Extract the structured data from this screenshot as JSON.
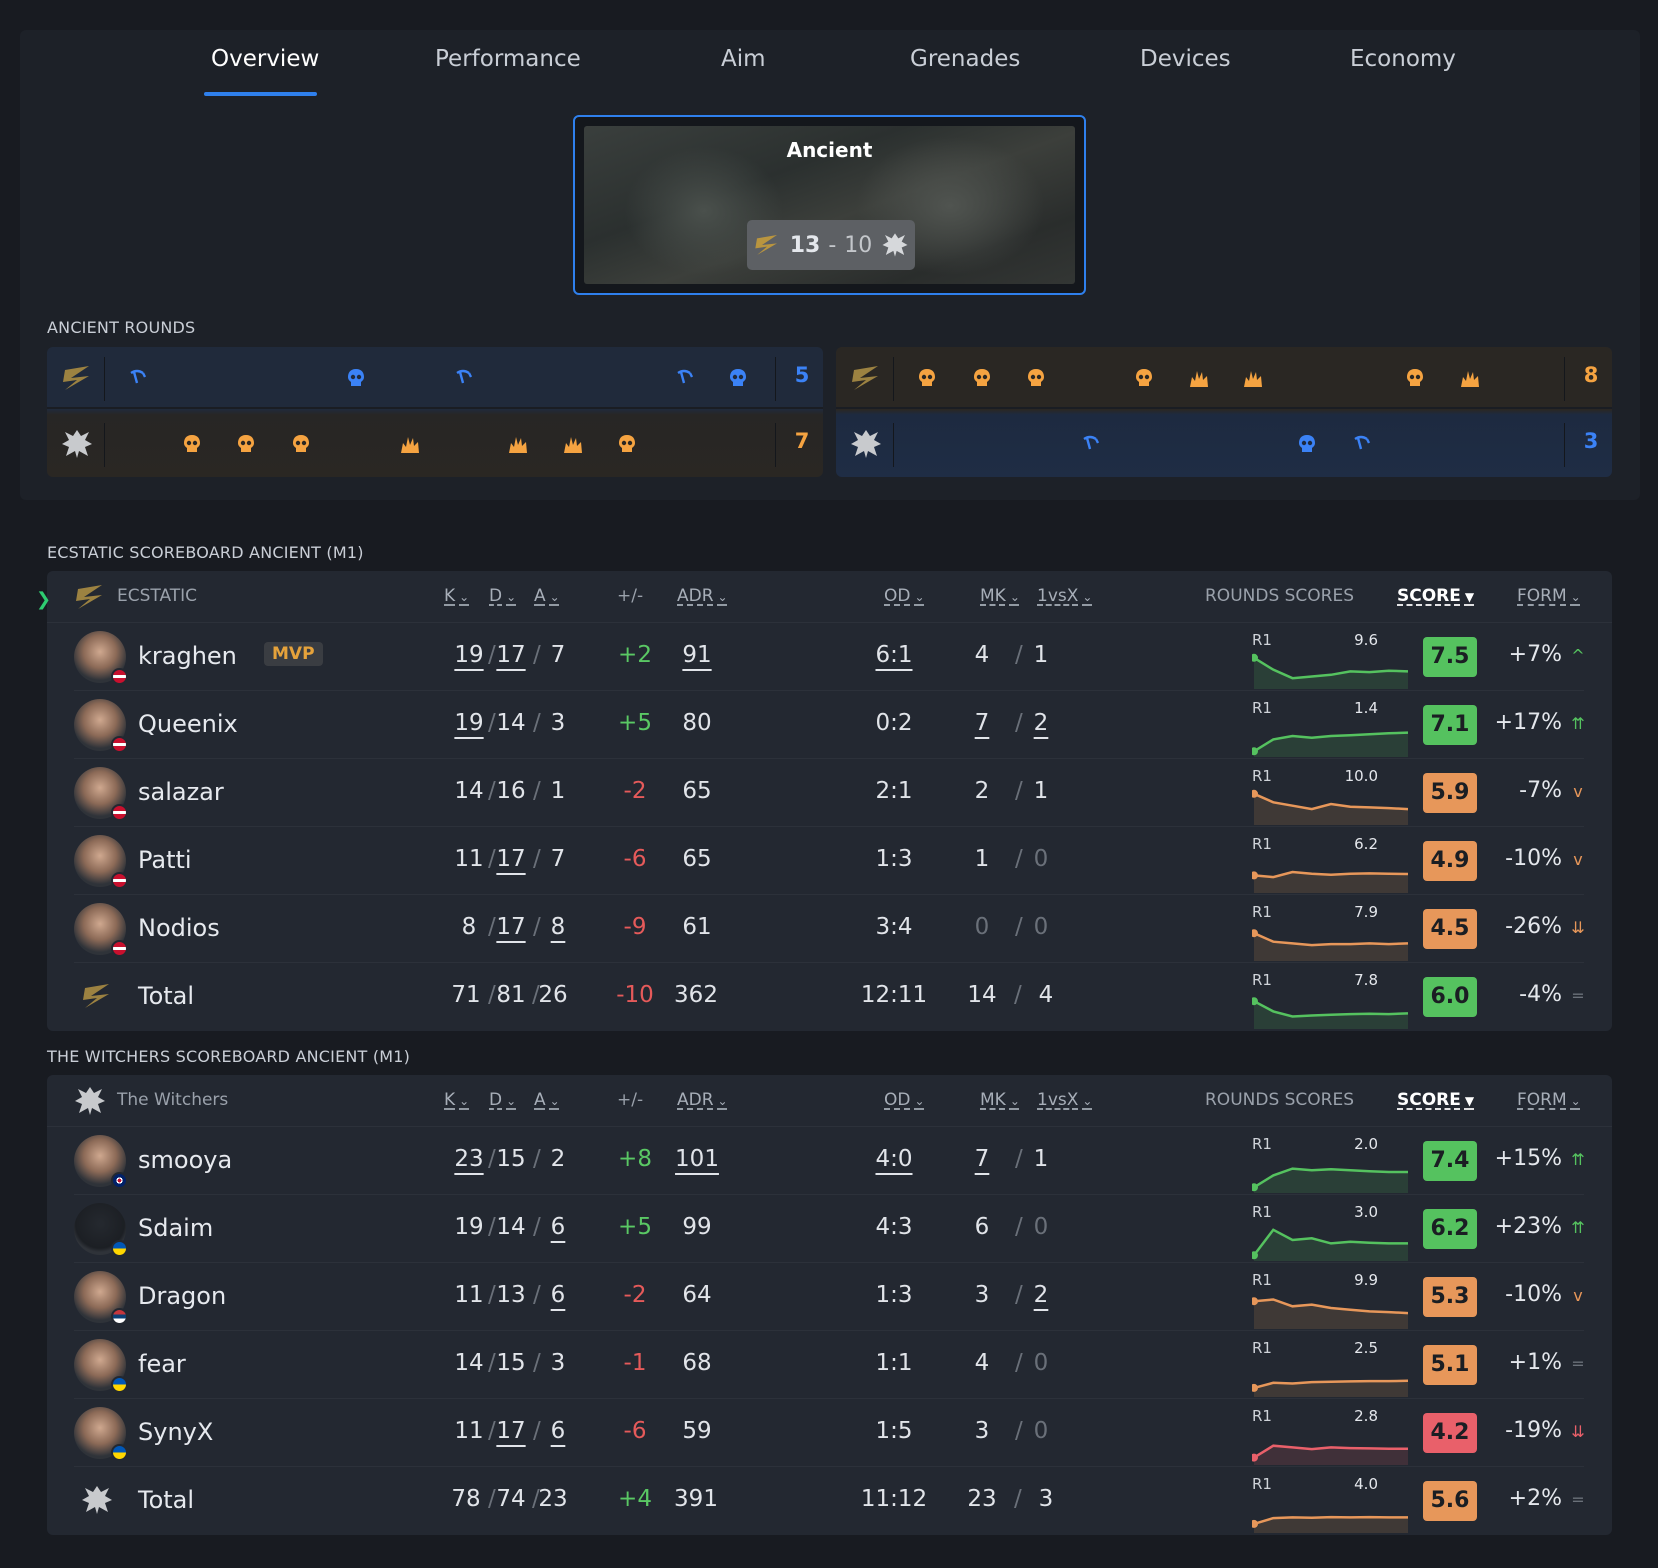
{
  "tabs": [
    "Overview",
    "Performance",
    "Aim",
    "Grenades",
    "Devices",
    "Economy"
  ],
  "map": {
    "name": "Ancient",
    "score_win": "13",
    "score_sep": "-",
    "score_lose": "10"
  },
  "rounds": {
    "label": "ANCIENT ROUNDS",
    "first_half": {
      "top_count": "5",
      "bottom_count": "7"
    },
    "second_half": {
      "top_count": "8",
      "bottom_count": "3"
    }
  },
  "headers": {
    "k": "K",
    "d": "D",
    "a": "A",
    "pm": "+/-",
    "adr": "ADR",
    "od": "OD",
    "mk": "MK",
    "vsx": "1vsX",
    "rounds_scores": "ROUNDS SCORES",
    "score": "SCORE",
    "form": "FORM",
    "r1": "R1"
  },
  "team1": {
    "label": "ECSTATIC SCOREBOARD ANCIENT (M1)",
    "name": "ECSTATIC",
    "players": [
      {
        "name": "kraghen",
        "mvp": "MVP",
        "k": "19",
        "d": "17",
        "a": "7",
        "pm": "+2",
        "adr": "91",
        "od": "6:1",
        "mk": "4",
        "vsx": "1",
        "max": "9.6",
        "score": "7.5",
        "form": "+7%"
      },
      {
        "name": "Queenix",
        "k": "19",
        "d": "14",
        "a": "3",
        "pm": "+5",
        "adr": "80",
        "od": "0:2",
        "mk": "7",
        "vsx": "2",
        "max": "1.4",
        "score": "7.1",
        "form": "+17%"
      },
      {
        "name": "salazar",
        "k": "14",
        "d": "16",
        "a": "1",
        "pm": "-2",
        "adr": "65",
        "od": "2:1",
        "mk": "2",
        "vsx": "1",
        "max": "10.0",
        "score": "5.9",
        "form": "-7%"
      },
      {
        "name": "Patti",
        "k": "11",
        "d": "17",
        "a": "7",
        "pm": "-6",
        "adr": "65",
        "od": "1:3",
        "mk": "1",
        "vsx": "0",
        "max": "6.2",
        "score": "4.9",
        "form": "-10%"
      },
      {
        "name": "Nodios",
        "k": "8",
        "d": "17",
        "a": "8",
        "pm": "-9",
        "adr": "61",
        "od": "3:4",
        "mk": "0",
        "vsx": "0",
        "max": "7.9",
        "score": "4.5",
        "form": "-26%"
      },
      {
        "name": "Total",
        "k": "71",
        "d": "81",
        "a": "26",
        "pm": "-10",
        "adr": "362",
        "od": "12:11",
        "mk": "14",
        "vsx": "4",
        "max": "7.8",
        "score": "6.0",
        "form": "-4%"
      }
    ]
  },
  "team2": {
    "label": "THE WITCHERS SCOREBOARD ANCIENT (M1)",
    "name": "The Witchers",
    "players": [
      {
        "name": "smooya",
        "k": "23",
        "d": "15",
        "a": "2",
        "pm": "+8",
        "adr": "101",
        "od": "4:0",
        "mk": "7",
        "vsx": "1",
        "max": "2.0",
        "score": "7.4",
        "form": "+15%"
      },
      {
        "name": "Sdaim",
        "k": "19",
        "d": "14",
        "a": "6",
        "pm": "+5",
        "adr": "99",
        "od": "4:3",
        "mk": "6",
        "vsx": "0",
        "max": "3.0",
        "score": "6.2",
        "form": "+23%"
      },
      {
        "name": "Dragon",
        "k": "11",
        "d": "13",
        "a": "6",
        "pm": "-2",
        "adr": "64",
        "od": "1:3",
        "mk": "3",
        "vsx": "2",
        "max": "9.9",
        "score": "5.3",
        "form": "-10%"
      },
      {
        "name": "fear",
        "k": "14",
        "d": "15",
        "a": "3",
        "pm": "-1",
        "adr": "68",
        "od": "1:1",
        "mk": "4",
        "vsx": "0",
        "max": "2.5",
        "score": "5.1",
        "form": "+1%"
      },
      {
        "name": "SynyX",
        "k": "11",
        "d": "17",
        "a": "6",
        "pm": "-6",
        "adr": "59",
        "od": "1:5",
        "mk": "3",
        "vsx": "0",
        "max": "2.8",
        "score": "4.2",
        "form": "-19%"
      },
      {
        "name": "Total",
        "k": "78",
        "d": "74",
        "a": "23",
        "pm": "+4",
        "adr": "391",
        "od": "11:12",
        "mk": "23",
        "vsx": "3",
        "max": "4.0",
        "score": "5.6",
        "form": "+2%"
      }
    ]
  },
  "colors": {
    "accent": "#2f80ed",
    "good": "#55c25f",
    "mid": "#e7975a",
    "bad": "#e9606a",
    "ct": "#3b82f6",
    "t": "#f5a341"
  }
}
